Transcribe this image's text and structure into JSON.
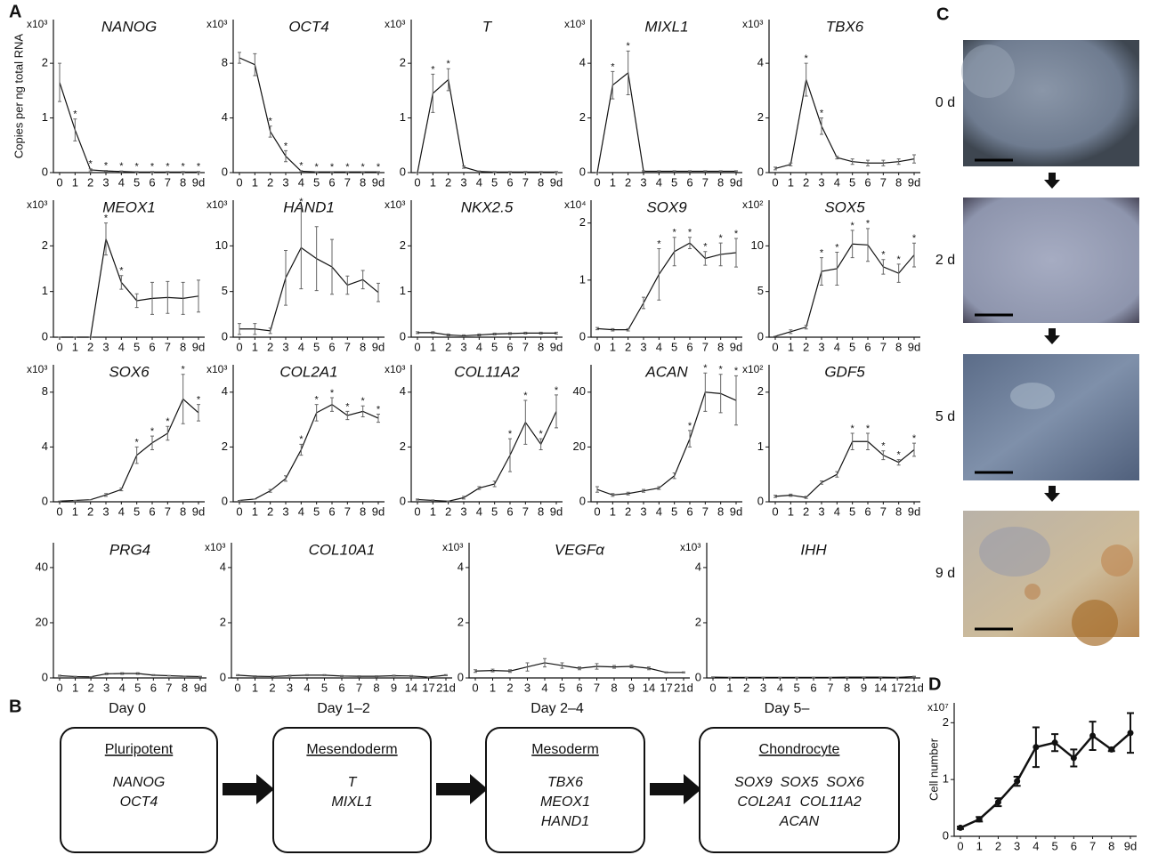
{
  "panel_labels": [
    "A",
    "B",
    "C",
    "D"
  ],
  "y_axis_label": "Copies per ng total RNA",
  "timepoints": [
    "0 d",
    "2 d",
    "5 d",
    "9 d"
  ],
  "stages": [
    {
      "day": "Day 0",
      "name": "Pluripotent",
      "genes": [
        "NANOG",
        "OCT4"
      ]
    },
    {
      "day": "Day 1–2",
      "name": "Mesendoderm",
      "genes": [
        "T",
        "MIXL1"
      ]
    },
    {
      "day": "Day 2–4",
      "name": "Mesoderm",
      "genes": [
        "TBX6",
        "MEOX1",
        "HAND1"
      ]
    },
    {
      "day": "Day 5–",
      "name": "Chondrocyte",
      "genes": [
        "SOX9  SOX5  SOX6",
        "COL2A1  COL11A2",
        "ACAN"
      ]
    }
  ],
  "chart_data": [
    {
      "type": "line",
      "title": "NANOG",
      "scale_label": "x10³",
      "categories": [
        "0",
        "1",
        "2",
        "3",
        "4",
        "5",
        "6",
        "7",
        "8",
        "9d"
      ],
      "values": [
        1.65,
        0.78,
        0.05,
        0.03,
        0.02,
        0.01,
        0.01,
        0.01,
        0.01,
        0.01
      ],
      "errors": [
        0.35,
        0.2,
        0.02,
        0.01,
        0.01,
        0.01,
        0.01,
        0.01,
        0.01,
        0.01
      ],
      "significance": [
        null,
        "*",
        "*",
        "*",
        "*",
        "*",
        "*",
        "*",
        "*",
        "*"
      ],
      "ylim": [
        0,
        2.8
      ],
      "yticks": [
        0,
        1,
        2
      ],
      "color": "#111111"
    },
    {
      "type": "line",
      "title": "OCT4",
      "scale_label": "x10³",
      "categories": [
        "0",
        "1",
        "2",
        "3",
        "4",
        "5",
        "6",
        "7",
        "8",
        "9d"
      ],
      "values": [
        8.4,
        7.9,
        3.0,
        1.2,
        0.1,
        0.05,
        0.05,
        0.05,
        0.05,
        0.05
      ],
      "errors": [
        0.4,
        0.8,
        0.4,
        0.4,
        0.05,
        0.02,
        0.02,
        0.02,
        0.02,
        0.02
      ],
      "significance": [
        null,
        null,
        "*",
        "*",
        "*",
        "*",
        "*",
        "*",
        "*",
        "*"
      ],
      "ylim": [
        0,
        11.2
      ],
      "yticks": [
        0,
        4,
        8
      ],
      "color": "#111111"
    },
    {
      "type": "line",
      "title": "T",
      "scale_label": "x10³",
      "categories": [
        "0",
        "1",
        "2",
        "3",
        "4",
        "5",
        "6",
        "7",
        "8",
        "9d"
      ],
      "values": [
        0,
        1.45,
        1.7,
        0.1,
        0.02,
        0.01,
        0.01,
        0.01,
        0.01,
        0.01
      ],
      "errors": [
        0,
        0.35,
        0.2,
        0.02,
        0.01,
        0.01,
        0.01,
        0.01,
        0.01,
        0.01
      ],
      "significance": [
        null,
        "*",
        "*",
        null,
        null,
        null,
        null,
        null,
        null,
        null
      ],
      "ylim": [
        0,
        2.8
      ],
      "yticks": [
        0,
        1,
        2
      ],
      "color": "#111111"
    },
    {
      "type": "line",
      "title": "MIXL1",
      "scale_label": "x10³",
      "categories": [
        "0",
        "1",
        "2",
        "3",
        "4",
        "5",
        "6",
        "7",
        "8",
        "9d"
      ],
      "values": [
        0,
        3.2,
        3.65,
        0.05,
        0.05,
        0.05,
        0.05,
        0.05,
        0.05,
        0.05
      ],
      "errors": [
        0,
        0.5,
        0.8,
        0.02,
        0.02,
        0.02,
        0.02,
        0.02,
        0.02,
        0.02
      ],
      "significance": [
        null,
        "*",
        "*",
        null,
        null,
        null,
        null,
        null,
        null,
        null
      ],
      "ylim": [
        0,
        5.6
      ],
      "yticks": [
        0,
        2,
        4
      ],
      "color": "#111111"
    },
    {
      "type": "line",
      "title": "TBX6",
      "scale_label": "x10³",
      "categories": [
        "0",
        "1",
        "2",
        "3",
        "4",
        "5",
        "6",
        "7",
        "8",
        "9d"
      ],
      "values": [
        0.15,
        0.3,
        3.4,
        1.7,
        0.55,
        0.4,
        0.35,
        0.35,
        0.4,
        0.5
      ],
      "errors": [
        0.05,
        0.05,
        0.6,
        0.3,
        0.05,
        0.1,
        0.1,
        0.1,
        0.1,
        0.15
      ],
      "significance": [
        null,
        null,
        "*",
        "*",
        null,
        null,
        null,
        null,
        null,
        null
      ],
      "ylim": [
        0,
        5.6
      ],
      "yticks": [
        0,
        2,
        4
      ],
      "color": "#111111"
    },
    {
      "type": "line",
      "title": "MEOX1",
      "scale_label": "x10³",
      "categories": [
        "0",
        "1",
        "2",
        "3",
        "4",
        "5",
        "6",
        "7",
        "8",
        "9d"
      ],
      "values": [
        0,
        0,
        0,
        2.15,
        1.2,
        0.8,
        0.85,
        0.87,
        0.85,
        0.9
      ],
      "errors": [
        0,
        0,
        0,
        0.35,
        0.15,
        0.15,
        0.35,
        0.35,
        0.35,
        0.35
      ],
      "significance": [
        null,
        null,
        null,
        "*",
        "*",
        null,
        null,
        null,
        null,
        null
      ],
      "ylim": [
        0,
        3
      ],
      "yticks": [
        0,
        1,
        2
      ],
      "color": "#111111"
    },
    {
      "type": "line",
      "title": "HAND1",
      "scale_label": "x10³",
      "categories": [
        "0",
        "1",
        "2",
        "3",
        "4",
        "5",
        "6",
        "7",
        "8",
        "9d"
      ],
      "values": [
        0.9,
        0.9,
        0.7,
        6.5,
        9.8,
        8.6,
        7.7,
        5.7,
        6.3,
        4.9
      ],
      "errors": [
        0.6,
        0.6,
        0.3,
        3,
        4.5,
        3.5,
        3,
        1,
        1,
        1
      ],
      "significance": [
        null,
        null,
        null,
        null,
        "*",
        null,
        null,
        null,
        null,
        null
      ],
      "ylim": [
        0,
        15
      ],
      "yticks": [
        0,
        5,
        10
      ],
      "color": "#111111"
    },
    {
      "type": "line",
      "title": "NKX2.5",
      "scale_label": "x10³",
      "categories": [
        "0",
        "1",
        "2",
        "3",
        "4",
        "5",
        "6",
        "7",
        "8",
        "9d"
      ],
      "values": [
        0.1,
        0.1,
        0.05,
        0.03,
        0.05,
        0.07,
        0.08,
        0.09,
        0.09,
        0.09
      ],
      "errors": [
        0.02,
        0.02,
        0.02,
        0.02,
        0.02,
        0.02,
        0.02,
        0.02,
        0.02,
        0.02
      ],
      "significance": [
        null,
        null,
        null,
        null,
        null,
        null,
        null,
        null,
        null,
        null
      ],
      "ylim": [
        0,
        3
      ],
      "yticks": [
        0,
        1,
        2
      ],
      "color": "#111111"
    },
    {
      "type": "line",
      "title": "SOX9",
      "scale_label": "x10⁴",
      "categories": [
        "0",
        "1",
        "2",
        "3",
        "4",
        "5",
        "6",
        "7",
        "8",
        "9d"
      ],
      "values": [
        0.15,
        0.13,
        0.13,
        0.6,
        1.1,
        1.5,
        1.65,
        1.38,
        1.45,
        1.48
      ],
      "errors": [
        0.02,
        0.02,
        0.02,
        0.1,
        0.45,
        0.25,
        0.1,
        0.12,
        0.2,
        0.25
      ],
      "significance": [
        null,
        null,
        null,
        null,
        "*",
        "*",
        "*",
        "*",
        "*",
        "*"
      ],
      "ylim": [
        0,
        2.4
      ],
      "yticks": [
        0,
        1,
        2
      ],
      "color": "#111111"
    },
    {
      "type": "line",
      "title": "SOX5",
      "scale_label": "x10²",
      "categories": [
        "0",
        "1",
        "2",
        "3",
        "4",
        "5",
        "6",
        "7",
        "8",
        "9d"
      ],
      "values": [
        0.1,
        0.6,
        1.1,
        7.2,
        7.5,
        10.2,
        10.1,
        7.7,
        7,
        9
      ],
      "errors": [
        0,
        0.2,
        0.2,
        1.5,
        1.8,
        1.5,
        1.8,
        0.8,
        1,
        1.3
      ],
      "significance": [
        null,
        null,
        null,
        "*",
        "*",
        "*",
        "*",
        "*",
        "*",
        "*"
      ],
      "ylim": [
        0,
        15
      ],
      "yticks": [
        0,
        5,
        10
      ],
      "color": "#111111"
    },
    {
      "type": "line",
      "title": "SOX6",
      "scale_label": "x10³",
      "categories": [
        "0",
        "1",
        "2",
        "3",
        "4",
        "5",
        "6",
        "7",
        "8",
        "9d"
      ],
      "values": [
        0.05,
        0.1,
        0.15,
        0.5,
        0.9,
        3.4,
        4.3,
        5,
        7.5,
        6.5
      ],
      "errors": [
        0,
        0,
        0,
        0.1,
        0.1,
        0.6,
        0.5,
        0.5,
        1.8,
        0.6
      ],
      "significance": [
        null,
        null,
        null,
        null,
        null,
        "*",
        "*",
        "*",
        "*",
        "*"
      ],
      "ylim": [
        0,
        10
      ],
      "yticks": [
        0,
        4,
        8
      ],
      "color": "#111111"
    },
    {
      "type": "line",
      "title": "COL2A1",
      "scale_label": "x10³",
      "categories": [
        "0",
        "1",
        "2",
        "3",
        "4",
        "5",
        "6",
        "7",
        "8",
        "9d"
      ],
      "values": [
        0.05,
        0.1,
        0.4,
        0.85,
        1.9,
        3.25,
        3.55,
        3.15,
        3.3,
        3.05
      ],
      "errors": [
        0,
        0,
        0.05,
        0.1,
        0.2,
        0.3,
        0.25,
        0.15,
        0.2,
        0.15
      ],
      "significance": [
        null,
        null,
        null,
        null,
        "*",
        "*",
        "*",
        "*",
        "*",
        "*"
      ],
      "ylim": [
        0,
        5
      ],
      "yticks": [
        0,
        2,
        4
      ],
      "color": "#111111"
    },
    {
      "type": "line",
      "title": "COL11A2",
      "scale_label": "x10³",
      "categories": [
        "0",
        "1",
        "2",
        "3",
        "4",
        "5",
        "6",
        "7",
        "8",
        "9d"
      ],
      "values": [
        0.08,
        0.05,
        0.02,
        0.15,
        0.5,
        0.65,
        1.7,
        2.9,
        2.1,
        3.3
      ],
      "errors": [
        0.02,
        0.02,
        0.01,
        0.05,
        0.05,
        0.1,
        0.6,
        0.8,
        0.2,
        0.6
      ],
      "significance": [
        null,
        null,
        null,
        null,
        null,
        null,
        "*",
        "*",
        "*",
        "*"
      ],
      "ylim": [
        0,
        5
      ],
      "yticks": [
        0,
        2,
        4
      ],
      "color": "#111111"
    },
    {
      "type": "line",
      "title": "ACAN",
      "categories": [
        "0",
        "1",
        "2",
        "3",
        "4",
        "5",
        "6",
        "7",
        "8",
        "9d"
      ],
      "values": [
        4.5,
        2.5,
        3,
        4,
        5,
        9.5,
        23,
        40,
        39.5,
        37
      ],
      "errors": [
        1,
        0.5,
        0.5,
        0.5,
        0.5,
        1,
        3,
        7,
        7,
        9
      ],
      "significance": [
        null,
        null,
        null,
        null,
        null,
        null,
        "*",
        "*",
        "*",
        "*"
      ],
      "ylim": [
        0,
        50
      ],
      "yticks": [
        0,
        20,
        40
      ],
      "color": "#111111"
    },
    {
      "type": "line",
      "title": "GDF5",
      "scale_label": "x10²",
      "categories": [
        "0",
        "1",
        "2",
        "3",
        "4",
        "5",
        "6",
        "7",
        "8",
        "9d"
      ],
      "values": [
        0.1,
        0.12,
        0.08,
        0.35,
        0.5,
        1.1,
        1.1,
        0.85,
        0.72,
        0.95
      ],
      "errors": [
        0.02,
        0.02,
        0.02,
        0.03,
        0.05,
        0.15,
        0.15,
        0.08,
        0.05,
        0.12
      ],
      "significance": [
        null,
        null,
        null,
        null,
        null,
        "*",
        "*",
        "*",
        "*",
        "*"
      ],
      "ylim": [
        0,
        2.5
      ],
      "yticks": [
        0,
        1,
        2
      ],
      "color": "#111111"
    },
    {
      "type": "line",
      "title": "PRG4",
      "categories": [
        "0",
        "1",
        "2",
        "3",
        "4",
        "5",
        "6",
        "7",
        "8",
        "9d"
      ],
      "values": [
        0.8,
        0.5,
        0.4,
        1.5,
        1.6,
        1.6,
        1,
        0.8,
        0.6,
        0.5
      ],
      "errors": [
        0.2,
        0.1,
        0.1,
        0.3,
        0.3,
        0.3,
        0.2,
        0.1,
        0.1,
        0.1
      ],
      "significance": [
        null,
        null,
        null,
        null,
        null,
        null,
        null,
        null,
        null,
        null
      ],
      "ylim": [
        0,
        49
      ],
      "yticks": [
        0,
        20,
        40
      ],
      "color": "#111111"
    },
    {
      "type": "line",
      "title": "COL10A1",
      "scale_label": "x10³",
      "categories": [
        "0",
        "1",
        "2",
        "3",
        "4",
        "5",
        "6",
        "7",
        "8",
        "9",
        "14",
        "17",
        "21d"
      ],
      "values": [
        0.1,
        0.06,
        0.05,
        0.08,
        0.1,
        0.1,
        0.07,
        0.06,
        0.06,
        0.08,
        0.07,
        0.03,
        0.1
      ],
      "errors": [
        0.02,
        0.02,
        0.02,
        0.02,
        0.02,
        0.02,
        0.02,
        0.02,
        0.02,
        0.02,
        0.02,
        0.01,
        0.02
      ],
      "significance": [
        null,
        null,
        null,
        null,
        null,
        null,
        null,
        null,
        null,
        null,
        null,
        null,
        null
      ],
      "ylim": [
        0,
        4.9
      ],
      "yticks": [
        0,
        2,
        4
      ],
      "color": "#111111"
    },
    {
      "type": "line",
      "title": "VEGFα",
      "scale_label": "x10³",
      "categories": [
        "0",
        "1",
        "2",
        "3",
        "4",
        "5",
        "6",
        "7",
        "8",
        "9",
        "14",
        "17",
        "21d"
      ],
      "values": [
        0.25,
        0.27,
        0.25,
        0.4,
        0.55,
        0.45,
        0.35,
        0.42,
        0.4,
        0.42,
        0.35,
        0.2,
        0.2
      ],
      "errors": [
        0.05,
        0.05,
        0.05,
        0.15,
        0.15,
        0.1,
        0.05,
        0.1,
        0.05,
        0.05,
        0.05,
        0.02,
        0.02
      ],
      "significance": [
        null,
        null,
        null,
        null,
        null,
        null,
        null,
        null,
        null,
        null,
        null,
        null,
        null
      ],
      "ylim": [
        0,
        4.9
      ],
      "yticks": [
        0,
        2,
        4
      ],
      "color": "#111111"
    },
    {
      "type": "line",
      "title": "IHH",
      "scale_label": "x10³",
      "categories": [
        "0",
        "1",
        "2",
        "3",
        "4",
        "5",
        "6",
        "7",
        "8",
        "9",
        "14",
        "17",
        "21d"
      ],
      "values": [
        0.03,
        0.02,
        0.02,
        0.02,
        0.02,
        0.02,
        0.02,
        0.02,
        0.03,
        0.03,
        0.03,
        0.02,
        0.05
      ],
      "errors": [
        0.01,
        0.01,
        0.01,
        0.01,
        0.01,
        0.01,
        0.01,
        0.01,
        0.01,
        0.01,
        0.01,
        0.01,
        0.01
      ],
      "significance": [
        null,
        null,
        null,
        null,
        null,
        null,
        null,
        null,
        null,
        null,
        null,
        null,
        null
      ],
      "ylim": [
        0,
        4.9
      ],
      "yticks": [
        0,
        2,
        4
      ],
      "color": "#111111"
    },
    {
      "type": "line",
      "ylabel": "Cell number",
      "scale_label": "x10⁷",
      "categories": [
        "0",
        "1",
        "2",
        "3",
        "4",
        "5",
        "6",
        "7",
        "8",
        "9d"
      ],
      "values": [
        0.15,
        0.3,
        0.6,
        0.97,
        1.57,
        1.65,
        1.38,
        1.77,
        1.53,
        1.82
      ],
      "errors": [
        0.02,
        0.04,
        0.07,
        0.08,
        0.35,
        0.15,
        0.15,
        0.25,
        0.03,
        0.35
      ],
      "ylim": [
        0,
        2.35
      ],
      "yticks": [
        0,
        1,
        2
      ],
      "color": "#111111"
    }
  ]
}
